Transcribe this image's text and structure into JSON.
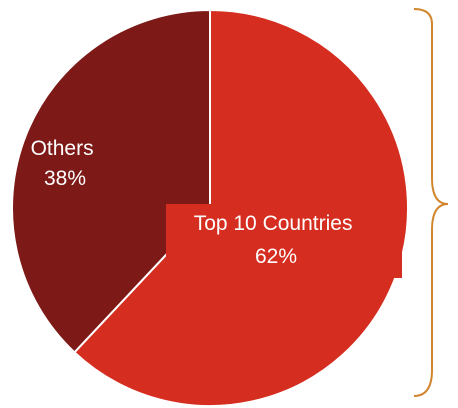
{
  "chart_data": {
    "type": "pie",
    "slices": [
      {
        "label": "Top 10 Countries",
        "value_label": "62%",
        "value": 62,
        "color": "#d52d1f"
      },
      {
        "label": "Others",
        "value_label": "38%",
        "value": 38,
        "color": "#7d1a18"
      }
    ],
    "start": "12 o'clock",
    "direction": "clockwise",
    "legend": "none",
    "annotation": {
      "type": "brace",
      "side": "right",
      "color": "#d1862d"
    }
  }
}
